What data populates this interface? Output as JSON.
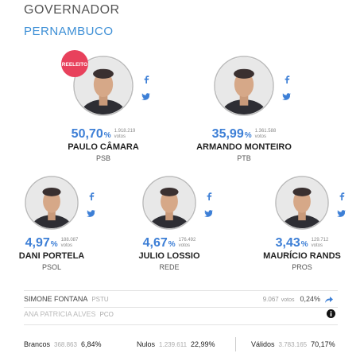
{
  "header": {
    "title": "GOVERNADOR",
    "state": "PERNAMBUCO"
  },
  "featured": [
    {
      "badge": "REELEITO",
      "percent": "50,70",
      "percent_sign": "%",
      "votes": "1.918.219",
      "votes_label": "votos",
      "name": "PAULO CÂMARA",
      "party": "PSB"
    },
    {
      "percent": "35,99",
      "percent_sign": "%",
      "votes": "1.361.588",
      "votes_label": "votos",
      "name": "ARMANDO MONTEIRO",
      "party": "PTB"
    }
  ],
  "others": [
    {
      "percent": "4,97",
      "percent_sign": "%",
      "votes": "188.087",
      "votes_label": "votos",
      "name": "DANI PORTELA",
      "party": "PSOL"
    },
    {
      "percent": "4,67",
      "percent_sign": "%",
      "votes": "176.492",
      "votes_label": "votos",
      "name": "JULIO LOSSIO",
      "party": "REDE"
    },
    {
      "percent": "3,43",
      "percent_sign": "%",
      "votes": "129.712",
      "votes_label": "votos",
      "name": "MAURÍCIO RANDS",
      "party": "PROS"
    }
  ],
  "minor": [
    {
      "name": "SIMONE FONTANA",
      "party": "PSTU",
      "votes": "9.067",
      "votes_label": "votos",
      "percent": "0,24%"
    },
    {
      "name": "ANA PATRICIA ALVES",
      "party": "PCO"
    }
  ],
  "totals": [
    {
      "label": "Brancos",
      "votes": "368.863",
      "percent": "6,84%"
    },
    {
      "label": "Nulos",
      "votes": "1.239.611",
      "percent": "22,99%"
    },
    {
      "label": "Válidos",
      "votes": "3.783.165",
      "percent": "70,17%"
    }
  ]
}
